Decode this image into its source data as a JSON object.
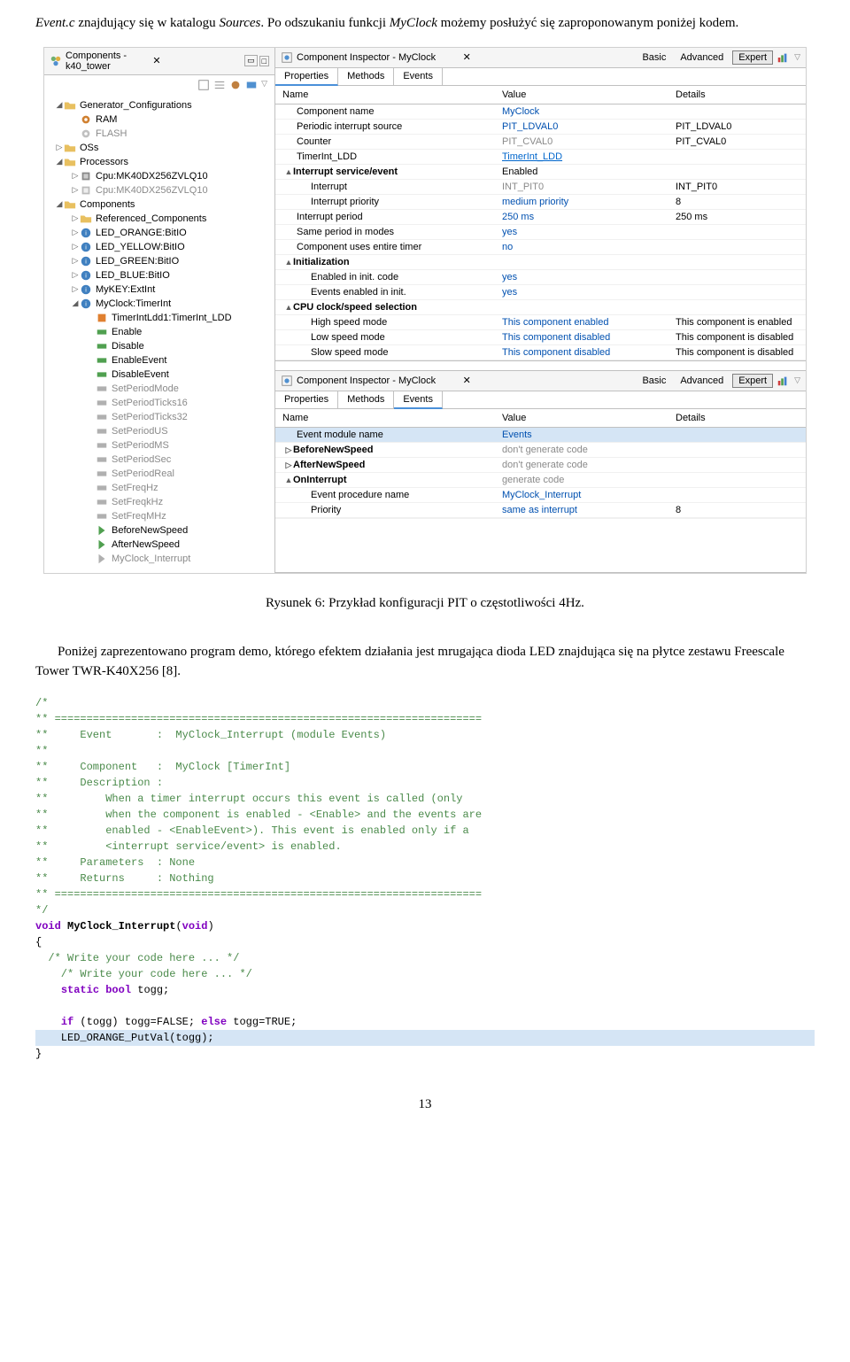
{
  "intro": {
    "p1_a": "Event.c",
    "p1_b": " znajdujący się w katalogu ",
    "p1_c": "Sources",
    "p1_d": ". Po odszukaniu funkcji ",
    "p1_e": "MyClock",
    "p1_f": " możemy posłużyć się zaproponowanym poniżej kodem."
  },
  "leftPanel": {
    "tabTitle": "Components - k40_tower"
  },
  "tree": {
    "genConfig": "Generator_Configurations",
    "ram": "RAM",
    "flash": "FLASH",
    "oss": "OSs",
    "processors": "Processors",
    "cpu1": "Cpu:MK40DX256ZVLQ10",
    "cpu2": "Cpu:MK40DX256ZVLQ10",
    "components": "Components",
    "refComp": "Referenced_Components",
    "ledOrange": "LED_ORANGE:BitIO",
    "ledYellow": "LED_YELLOW:BitIO",
    "ledGreen": "LED_GREEN:BitIO",
    "ledBlue": "LED_BLUE:BitIO",
    "myKey": "MyKEY:ExtInt",
    "myClock": "MyClock:TimerInt",
    "timerLdd": "TimerIntLdd1:TimerInt_LDD",
    "enable": "Enable",
    "disable": "Disable",
    "enableEvent": "EnableEvent",
    "disableEvent": "DisableEvent",
    "setPeriodMode": "SetPeriodMode",
    "setPeriodTicks16": "SetPeriodTicks16",
    "setPeriodTicks32": "SetPeriodTicks32",
    "setPeriodUS": "SetPeriodUS",
    "setPeriodMS": "SetPeriodMS",
    "setPeriodSec": "SetPeriodSec",
    "setPeriodReal": "SetPeriodReal",
    "setFreqHz": "SetFreqHz",
    "setFreqkHz": "SetFreqkHz",
    "setFreqMHz": "SetFreqMHz",
    "beforeNewSpeed": "BeforeNewSpeed",
    "afterNewSpeed": "AfterNewSpeed",
    "myClockInt": "MyClock_Interrupt"
  },
  "inspector1": {
    "title": "Component Inspector - MyClock",
    "modes": {
      "basic": "Basic",
      "advanced": "Advanced",
      "expert": "Expert"
    },
    "tabs": {
      "properties": "Properties",
      "methods": "Methods",
      "events": "Events"
    },
    "cols": {
      "name": "Name",
      "value": "Value",
      "details": "Details"
    },
    "rows": [
      {
        "name": "Component name",
        "value": "MyClock",
        "details": "",
        "i": 1,
        "vclass": "blue-val"
      },
      {
        "name": "Periodic interrupt source",
        "value": "PIT_LDVAL0",
        "details": "PIT_LDVAL0",
        "i": 1,
        "vclass": "blue-val"
      },
      {
        "name": "Counter",
        "value": "PIT_CVAL0",
        "details": "PIT_CVAL0",
        "i": 1,
        "vclass": "gray-text"
      },
      {
        "name": "TimerInt_LDD",
        "value": "TimerInt_LDD",
        "details": "",
        "i": 1,
        "vclass": "link-val"
      },
      {
        "name": "Interrupt service/event",
        "value": "Enabled",
        "details": "",
        "i": 1,
        "bold": true,
        "exp": "▲"
      },
      {
        "name": "Interrupt",
        "value": "INT_PIT0",
        "details": "INT_PIT0",
        "i": 2,
        "vclass": "gray-text"
      },
      {
        "name": "Interrupt priority",
        "value": "medium priority",
        "details": "8",
        "i": 2,
        "vclass": "blue-val"
      },
      {
        "name": "Interrupt period",
        "value": "250 ms",
        "details": "250 ms",
        "i": 1,
        "vclass": "blue-val"
      },
      {
        "name": "Same period in modes",
        "value": "yes",
        "details": "",
        "i": 1,
        "vclass": "blue-val"
      },
      {
        "name": "Component uses entire timer",
        "value": "no",
        "details": "",
        "i": 1,
        "vclass": "blue-val"
      },
      {
        "name": "Initialization",
        "value": "",
        "details": "",
        "i": 1,
        "bold": true,
        "exp": "▲"
      },
      {
        "name": "Enabled in init. code",
        "value": "yes",
        "details": "",
        "i": 2,
        "vclass": "blue-val"
      },
      {
        "name": "Events enabled in init.",
        "value": "yes",
        "details": "",
        "i": 2,
        "vclass": "blue-val"
      },
      {
        "name": "CPU clock/speed selection",
        "value": "",
        "details": "",
        "i": 1,
        "bold": true,
        "exp": "▲"
      },
      {
        "name": "High speed mode",
        "value": "This component enabled",
        "details": "This component is enabled",
        "i": 2,
        "vclass": "blue-val"
      },
      {
        "name": "Low speed mode",
        "value": "This component disabled",
        "details": "This component is disabled",
        "i": 2,
        "vclass": "blue-val"
      },
      {
        "name": "Slow speed mode",
        "value": "This component disabled",
        "details": "This component is disabled",
        "i": 2,
        "vclass": "blue-val"
      }
    ]
  },
  "inspector2": {
    "title": "Component Inspector - MyClock",
    "rows": [
      {
        "name": "Event module name",
        "value": "Events",
        "details": "",
        "i": 1,
        "vclass": "blue-val",
        "sel": true
      },
      {
        "name": "BeforeNewSpeed",
        "value": "don't generate code",
        "details": "",
        "i": 1,
        "bold": true,
        "vclass": "gray-text",
        "exp": "▷"
      },
      {
        "name": "AfterNewSpeed",
        "value": "don't generate code",
        "details": "",
        "i": 1,
        "bold": true,
        "vclass": "gray-text",
        "exp": "▷"
      },
      {
        "name": "OnInterrupt",
        "value": "generate code",
        "details": "",
        "i": 1,
        "bold": true,
        "vclass": "gray-text",
        "exp": "▲"
      },
      {
        "name": "Event procedure name",
        "value": "MyClock_Interrupt",
        "details": "",
        "i": 2,
        "vclass": "blue-val"
      },
      {
        "name": "Priority",
        "value": "same as interrupt",
        "details": "8",
        "i": 2,
        "vclass": "blue-val"
      }
    ]
  },
  "figCaption": "Rysunek 6: Przykład konfiguracji PIT o częstotliwości 4Hz.",
  "bodyPara": "Poniżej zaprezentowano program demo, którego efektem działania jest mrugająca dioda LED znajdująca się na płytce zestawu Freescale Tower TWR-K40X256 [8].",
  "code": {
    "l1": "/*",
    "l2": "** ===================================================================",
    "l3": "**     Event       :  MyClock_Interrupt (module Events)",
    "l4": "**",
    "l5": "**     Component   :  MyClock [TimerInt]",
    "l6": "**     Description :",
    "l7": "**         When a timer interrupt occurs this event is called (only",
    "l8": "**         when the component is enabled - <Enable> and the events are",
    "l9": "**         enabled - <EnableEvent>). This event is enabled only if a",
    "l10": "**         <interrupt service/event> is enabled.",
    "l11": "**     Parameters  : None",
    "l12": "**     Returns     : Nothing",
    "l13": "** ===================================================================",
    "l14": "*/",
    "kw_void": "void",
    "fn_name": " MyClock_Interrupt",
    "paren": "(void)",
    "brace_open": "{",
    "c1": "  /* Write your code here ... */",
    "c2": "    /* Write your code here ... */",
    "kw_static": "static",
    "kw_bool": " bool",
    "var_togg": " togg;",
    "kw_if": "if",
    "cond1": " (togg) togg=FALSE; ",
    "kw_else": "else",
    "cond2": " togg=TRUE;",
    "hl_line": "    LED_ORANGE_PutVal(togg);",
    "brace_close": "}"
  },
  "pageNum": "13",
  "colors": {
    "folder": "#e8c060",
    "gear": "#d08030",
    "processor": "#808080",
    "component": "#4080c0",
    "method_green": "#50a050",
    "method_gray": "#a0a0a0",
    "event_green": "#50a050"
  }
}
